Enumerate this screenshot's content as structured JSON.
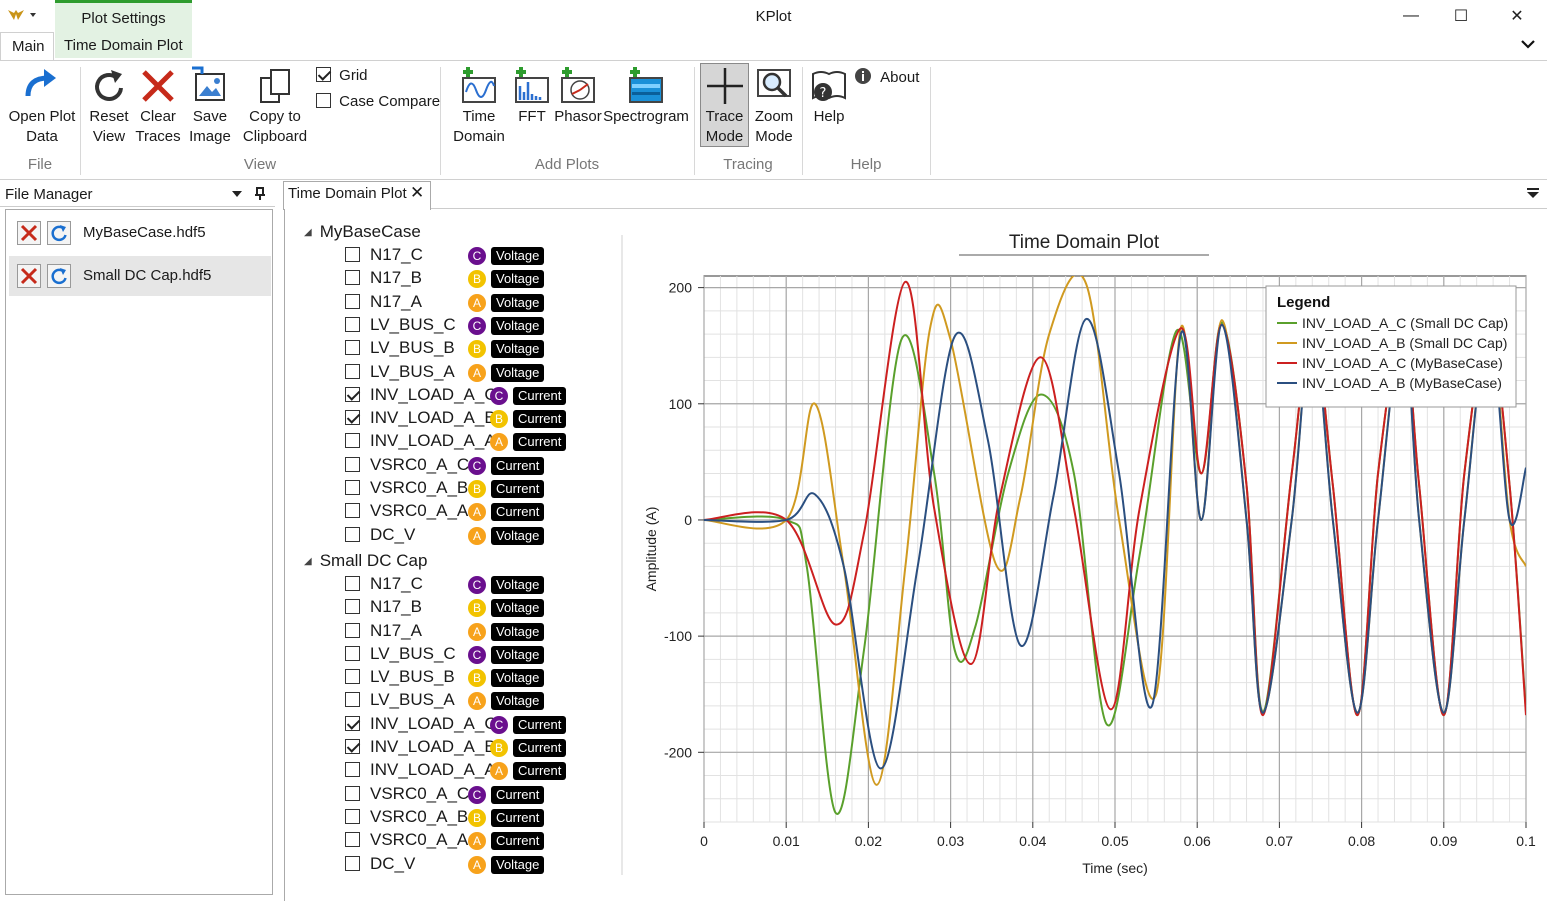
{
  "window": {
    "title": "KPlot",
    "minimize_glyph": "—",
    "maximize_glyph": "☐",
    "close_glyph": "✕"
  },
  "ribbon_tabs": {
    "context_group": "Plot Settings",
    "main": "Main",
    "time_domain_plot": "Time Domain Plot"
  },
  "ribbon": {
    "file": {
      "group": "File",
      "open_line1": "Open Plot",
      "open_line2": "Data"
    },
    "view": {
      "group": "View",
      "reset_line1": "Reset",
      "reset_line2": "View",
      "clear_line1": "Clear",
      "clear_line2": "Traces",
      "save_line1": "Save",
      "save_line2": "Image",
      "copy_line1": "Copy to",
      "copy_line2": "Clipboard",
      "grid": "Grid",
      "grid_checked": true,
      "case_compare": "Case Compare",
      "case_compare_checked": false
    },
    "add_plots": {
      "group": "Add Plots",
      "time_line1": "Time",
      "time_line2": "Domain",
      "fft": "FFT",
      "phasor": "Phasor",
      "spectrogram": "Spectrogram"
    },
    "tracing": {
      "group": "Tracing",
      "trace_line1": "Trace",
      "trace_line2": "Mode",
      "zoom_line1": "Zoom",
      "zoom_line2": "Mode"
    },
    "help": {
      "group": "Help",
      "help": "Help",
      "about": "About"
    }
  },
  "file_manager": {
    "title": "File Manager",
    "files": [
      {
        "name": "MyBaseCase.hdf5",
        "selected": false
      },
      {
        "name": "Small DC Cap.hdf5",
        "selected": true
      }
    ]
  },
  "doc_tab": {
    "label": "Time Domain Plot",
    "close_glyph": "✕"
  },
  "tree": {
    "cases": [
      {
        "name": "MyBaseCase",
        "signals": [
          {
            "name": "N17_C",
            "phase": "C",
            "qty": "Voltage",
            "checked": false
          },
          {
            "name": "N17_B",
            "phase": "B",
            "qty": "Voltage",
            "checked": false
          },
          {
            "name": "N17_A",
            "phase": "A",
            "qty": "Voltage",
            "checked": false
          },
          {
            "name": "LV_BUS_C",
            "phase": "C",
            "qty": "Voltage",
            "checked": false
          },
          {
            "name": "LV_BUS_B",
            "phase": "B",
            "qty": "Voltage",
            "checked": false
          },
          {
            "name": "LV_BUS_A",
            "phase": "A",
            "qty": "Voltage",
            "checked": false
          },
          {
            "name": "INV_LOAD_A_C",
            "phase": "C",
            "qty": "Current",
            "checked": true
          },
          {
            "name": "INV_LOAD_A_B",
            "phase": "B",
            "qty": "Current",
            "checked": true
          },
          {
            "name": "INV_LOAD_A_A",
            "phase": "A",
            "qty": "Current",
            "checked": false
          },
          {
            "name": "VSRC0_A_C",
            "phase": "C",
            "qty": "Current",
            "checked": false
          },
          {
            "name": "VSRC0_A_B",
            "phase": "B",
            "qty": "Current",
            "checked": false
          },
          {
            "name": "VSRC0_A_A",
            "phase": "A",
            "qty": "Current",
            "checked": false
          },
          {
            "name": "DC_V",
            "phase": "A",
            "qty": "Voltage",
            "checked": false
          }
        ]
      },
      {
        "name": "Small DC Cap",
        "signals": [
          {
            "name": "N17_C",
            "phase": "C",
            "qty": "Voltage",
            "checked": false
          },
          {
            "name": "N17_B",
            "phase": "B",
            "qty": "Voltage",
            "checked": false
          },
          {
            "name": "N17_A",
            "phase": "A",
            "qty": "Voltage",
            "checked": false
          },
          {
            "name": "LV_BUS_C",
            "phase": "C",
            "qty": "Voltage",
            "checked": false
          },
          {
            "name": "LV_BUS_B",
            "phase": "B",
            "qty": "Voltage",
            "checked": false
          },
          {
            "name": "LV_BUS_A",
            "phase": "A",
            "qty": "Voltage",
            "checked": false
          },
          {
            "name": "INV_LOAD_A_C",
            "phase": "C",
            "qty": "Current",
            "checked": true
          },
          {
            "name": "INV_LOAD_A_B",
            "phase": "B",
            "qty": "Current",
            "checked": true
          },
          {
            "name": "INV_LOAD_A_A",
            "phase": "A",
            "qty": "Current",
            "checked": false
          },
          {
            "name": "VSRC0_A_C",
            "phase": "C",
            "qty": "Current",
            "checked": false
          },
          {
            "name": "VSRC0_A_B",
            "phase": "B",
            "qty": "Current",
            "checked": false
          },
          {
            "name": "VSRC0_A_A",
            "phase": "A",
            "qty": "Current",
            "checked": false
          },
          {
            "name": "DC_V",
            "phase": "A",
            "qty": "Voltage",
            "checked": false
          }
        ]
      }
    ]
  },
  "colors": {
    "phase_C": "#6a0f8e",
    "phase_B": "#f2c300",
    "phase_A": "#f7a21b",
    "context_tab": "#e3f2e3",
    "context_accent": "#2e9c2e"
  },
  "chart_data": {
    "type": "line",
    "title": "Time Domain Plot",
    "xlabel": "Time (sec)",
    "ylabel": "Amplitude (A)",
    "xlim": [
      0,
      0.1
    ],
    "ylim": [
      -260,
      210
    ],
    "xticks": [
      0,
      0.01,
      0.02,
      0.03,
      0.04,
      0.05,
      0.06,
      0.07,
      0.08,
      0.09,
      0.1
    ],
    "xtick_labels": [
      "0",
      "0.01",
      "0.02",
      "0.03",
      "0.04",
      "0.05",
      "0.06",
      "0.07",
      "0.08",
      "0.09",
      "0.1"
    ],
    "yticks": [
      200,
      100,
      0,
      -100,
      -200
    ],
    "ytick_labels": [
      "200",
      "100",
      "0",
      "-100",
      "-200"
    ],
    "grid": true,
    "legend_title": "Legend",
    "legend_position": "top-right",
    "series": [
      {
        "name": "INV_LOAD_A_C (Small DC Cap)",
        "color": "#5aa02c",
        "x": [
          0,
          0.01,
          0.0125,
          0.016,
          0.0195,
          0.024,
          0.028,
          0.0305,
          0.033,
          0.037,
          0.041,
          0.045,
          0.049,
          0.053,
          0.0575,
          0.0605,
          0.063,
          0.066,
          0.068,
          0.0715,
          0.074,
          0.0765,
          0.0795,
          0.082,
          0.085,
          0.087,
          0.09,
          0.0925,
          0.0955,
          0.098,
          0.1
        ],
        "y": [
          0,
          0,
          -40,
          -252,
          -110,
          155,
          40,
          -112,
          -92,
          40,
          108,
          40,
          -176,
          -30,
          163,
          40,
          170,
          30,
          -165,
          40,
          168,
          30,
          -168,
          40,
          165,
          30,
          -168,
          40,
          165,
          30,
          -165
        ]
      },
      {
        "name": "INV_LOAD_A_B (Small DC Cap)",
        "color": "#d09a20",
        "x": [
          0,
          0.01,
          0.0135,
          0.017,
          0.021,
          0.0245,
          0.0275,
          0.03,
          0.0355,
          0.0385,
          0.042,
          0.0465,
          0.0505,
          0.055,
          0.058,
          0.0605,
          0.063,
          0.066,
          0.068,
          0.0715,
          0.074,
          0.0765,
          0.0795,
          0.082,
          0.085,
          0.087,
          0.09,
          0.0925,
          0.0955,
          0.098,
          0.1
        ],
        "y": [
          0,
          0,
          100,
          -40,
          -228,
          -40,
          165,
          155,
          -38,
          20,
          160,
          203,
          0,
          -150,
          165,
          0,
          172,
          0,
          -166,
          0,
          170,
          0,
          -166,
          0,
          170,
          0,
          -166,
          0,
          170,
          0,
          -40
        ]
      },
      {
        "name": "INV_LOAD_A_C (MyBaseCase)",
        "color": "#cc2020",
        "x": [
          0,
          0.01,
          0.016,
          0.0195,
          0.0245,
          0.028,
          0.0325,
          0.036,
          0.041,
          0.045,
          0.0495,
          0.053,
          0.058,
          0.0605,
          0.063,
          0.066,
          0.068,
          0.0715,
          0.074,
          0.0765,
          0.0795,
          0.082,
          0.085,
          0.087,
          0.09,
          0.0925,
          0.0955,
          0.098,
          0.1
        ],
        "y": [
          0,
          0,
          -90,
          -10,
          205,
          10,
          -124,
          20,
          140,
          10,
          -163,
          10,
          165,
          40,
          168,
          30,
          -168,
          40,
          168,
          30,
          -168,
          40,
          165,
          30,
          -168,
          40,
          165,
          30,
          -168
        ]
      },
      {
        "name": "INV_LOAD_A_B (MyBaseCase)",
        "color": "#2b4f80",
        "x": [
          0,
          0.01,
          0.0135,
          0.017,
          0.0215,
          0.026,
          0.0305,
          0.0345,
          0.0385,
          0.0425,
          0.0465,
          0.0505,
          0.0545,
          0.058,
          0.0605,
          0.063,
          0.066,
          0.068,
          0.0715,
          0.074,
          0.0765,
          0.0795,
          0.082,
          0.085,
          0.087,
          0.09,
          0.0925,
          0.0955,
          0.098,
          0.1
        ],
        "y": [
          0,
          0,
          22,
          -40,
          -214,
          -40,
          158,
          70,
          -108,
          20,
          173,
          40,
          -160,
          160,
          0,
          168,
          0,
          -166,
          0,
          168,
          0,
          -166,
          0,
          168,
          0,
          -166,
          0,
          168,
          0,
          45
        ]
      }
    ]
  }
}
